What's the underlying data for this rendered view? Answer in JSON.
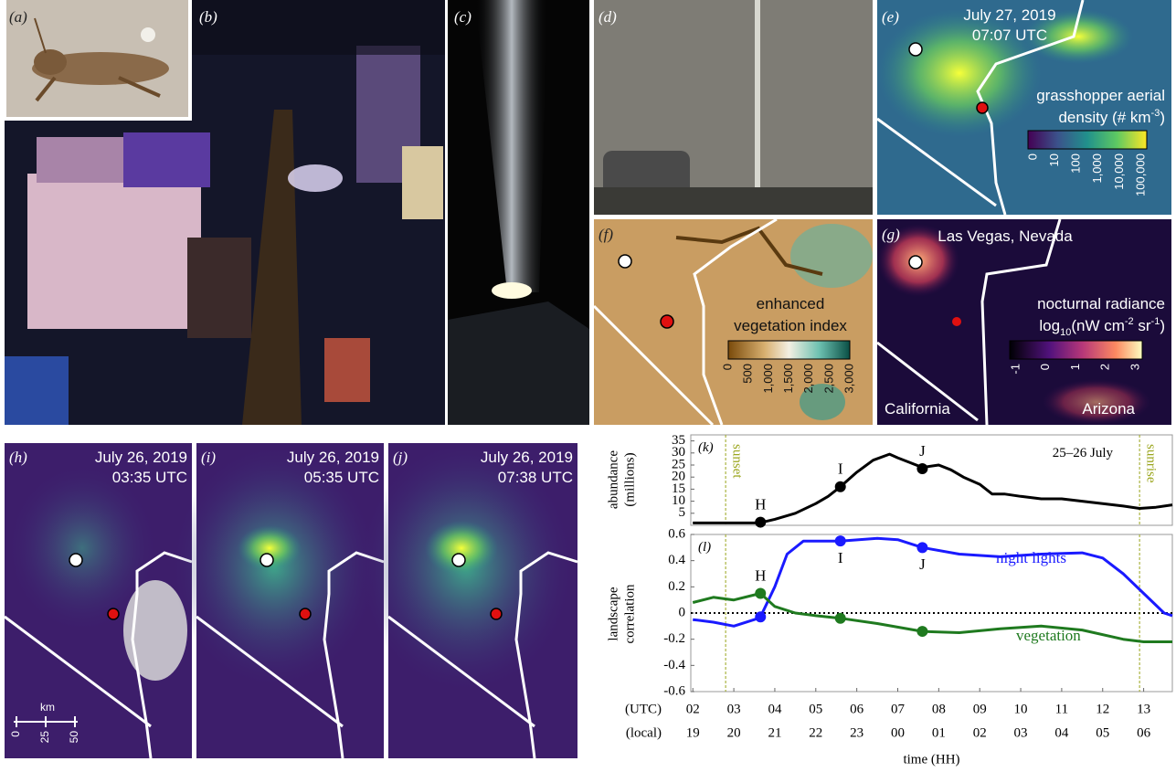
{
  "panels": {
    "a": {
      "label": "(a)"
    },
    "b": {
      "label": "(b)"
    },
    "c": {
      "label": "(c)"
    },
    "d": {
      "label": "(d)"
    },
    "e": {
      "label": "(e)",
      "date": "July 27, 2019",
      "time": "07:07 UTC",
      "title_line1": "grasshopper aerial",
      "title_line2": "density (# km",
      "title_sup": "-3",
      "title_close": ")",
      "colorbar_ticks": [
        "0",
        "10",
        "100",
        "1,000",
        "10,000",
        "100,000"
      ]
    },
    "f": {
      "label": "(f)",
      "title_line1": "enhanced",
      "title_line2": "vegetation index",
      "colorbar_ticks": [
        "0",
        "500",
        "1,000",
        "1,500",
        "2,000",
        "2,500",
        "3,000"
      ]
    },
    "g": {
      "label": "(g)",
      "place": "Las Vegas, Nevada",
      "title_line1": "nocturnal radiance",
      "log": "log",
      "log_sub": "10",
      "unit1": "(nW cm",
      "sup1": "-2",
      "unit2": " sr",
      "sup2": "-1",
      "unit_close": ")",
      "colorbar_ticks": [
        "-1",
        "0",
        "1",
        "2",
        "3"
      ],
      "left_region": "California",
      "right_region": "Arizona"
    },
    "h": {
      "label": "(h)",
      "date": "July 26, 2019",
      "time": "03:35 UTC",
      "scale_unit": "km",
      "scale_ticks": [
        "0",
        "25",
        "50"
      ]
    },
    "i": {
      "label": "(i)",
      "date": "July 26, 2019",
      "time": "05:35 UTC"
    },
    "j": {
      "label": "(j)",
      "date": "July 26, 2019",
      "time": "07:38 UTC"
    }
  },
  "chart_data": [
    {
      "type": "line",
      "panel_label": "(k)",
      "ylabel_line1": "abundance",
      "ylabel_line2": "(millions)",
      "note": "25–26 July",
      "xlim": [
        1.95,
        13.7
      ],
      "ylim": [
        0,
        37.5
      ],
      "yticks": [
        5,
        10,
        15,
        20,
        25,
        30,
        35
      ],
      "vlines": [
        {
          "x": 2.8,
          "label": "sunset"
        },
        {
          "x": 12.9,
          "label": "sunrise"
        }
      ],
      "vline_color": "#9aa51c",
      "series": [
        {
          "color": "#000000",
          "x": [
            2.0,
            2.5,
            3.0,
            3.5,
            3.7,
            4.0,
            4.5,
            5.0,
            5.3,
            5.6,
            6.0,
            6.4,
            6.8,
            7.0,
            7.3,
            7.6,
            8.0,
            8.3,
            8.6,
            9.0,
            9.3,
            9.6,
            10.0,
            10.5,
            11.0,
            11.5,
            12.0,
            12.5,
            12.9,
            13.3,
            13.7
          ],
          "values": [
            1,
            1,
            1,
            1,
            1.3,
            2.5,
            5,
            9,
            12,
            16,
            22,
            27,
            29.5,
            28,
            26,
            24,
            25,
            23,
            20,
            17,
            13,
            13,
            12,
            11,
            11,
            10,
            9,
            8,
            7,
            7.5,
            8.5
          ],
          "marker_x": [
            3.65,
            5.6,
            7.6
          ],
          "marker_values": [
            1.3,
            16,
            23.5
          ]
        }
      ],
      "marker_labels": [
        "H",
        "I",
        "J"
      ]
    },
    {
      "type": "line",
      "panel_label": "(l)",
      "ylabel_line1": "landscape",
      "ylabel_line2": "correlation",
      "xlim": [
        1.95,
        13.7
      ],
      "ylim": [
        -0.6,
        0.6
      ],
      "yticks": [
        -0.6,
        -0.4,
        -0.2,
        0,
        0.2,
        0.4,
        0.6
      ],
      "zero_line": true,
      "xticks": [
        {
          "value": 2,
          "label": "02"
        },
        {
          "value": 3,
          "label": "03"
        },
        {
          "value": 4,
          "label": "04"
        },
        {
          "value": 5,
          "label": "05"
        },
        {
          "value": 6,
          "label": "06"
        },
        {
          "value": 7,
          "label": "07"
        },
        {
          "value": 8,
          "label": "08"
        },
        {
          "value": 9,
          "label": "09"
        },
        {
          "value": 10,
          "label": "10"
        },
        {
          "value": 11,
          "label": "11"
        },
        {
          "value": 12,
          "label": "12"
        },
        {
          "value": 13,
          "label": "13"
        }
      ],
      "xtick_labels_local": [
        "19",
        "20",
        "21",
        "22",
        "23",
        "00",
        "01",
        "02",
        "03",
        "04",
        "05",
        "06"
      ],
      "xrow_utc": "(UTC)",
      "xrow_local": "(local)",
      "xlabel": "time (HH)",
      "vlines": [
        {
          "x": 2.8
        },
        {
          "x": 12.9
        }
      ],
      "vline_color": "#9aa51c",
      "series": [
        {
          "name": "night lights",
          "color": "#1a1aff",
          "x": [
            2.0,
            2.5,
            3.0,
            3.5,
            3.65,
            4.0,
            4.3,
            4.7,
            5.6,
            6.5,
            7.0,
            7.6,
            8.5,
            9.5,
            10.5,
            11.5,
            12.0,
            12.5,
            13.0,
            13.5,
            13.7
          ],
          "values": [
            -0.05,
            -0.07,
            -0.1,
            -0.05,
            -0.03,
            0.2,
            0.45,
            0.55,
            0.55,
            0.57,
            0.56,
            0.5,
            0.45,
            0.43,
            0.45,
            0.46,
            0.42,
            0.3,
            0.15,
            0,
            -0.02
          ],
          "marker_x": [
            3.65,
            5.6,
            7.6
          ],
          "marker_values": [
            -0.03,
            0.55,
            0.5
          ]
        },
        {
          "name": "vegetation",
          "color": "#1f7a1f",
          "x": [
            2.0,
            2.5,
            3.0,
            3.65,
            4.0,
            4.5,
            5.0,
            5.6,
            6.5,
            7.6,
            8.5,
            9.5,
            10.5,
            11.5,
            12.5,
            13.0,
            13.7
          ],
          "values": [
            0.08,
            0.12,
            0.1,
            0.15,
            0.05,
            0,
            -0.02,
            -0.04,
            -0.08,
            -0.14,
            -0.15,
            -0.12,
            -0.1,
            -0.13,
            -0.2,
            -0.22,
            -0.22
          ],
          "marker_x": [
            3.65,
            5.6,
            7.6
          ],
          "marker_values": [
            0.15,
            -0.04,
            -0.14
          ]
        }
      ],
      "marker_labels": [
        "H",
        "I",
        "J"
      ]
    }
  ]
}
